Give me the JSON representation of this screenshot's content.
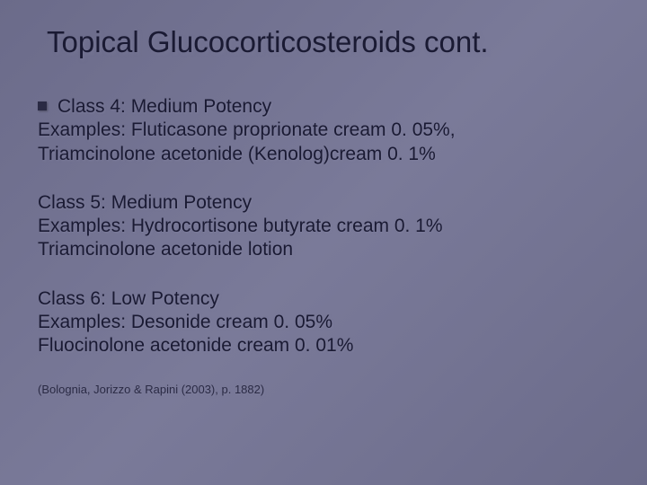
{
  "title": "Topical Glucocorticosteroids cont.",
  "sections": [
    {
      "heading": "Class 4: Medium Potency",
      "hasBullet": true,
      "lines": [
        "Examples: Fluticasone proprionate cream 0. 05%,",
        "Triamcinolone acetonide (Kenolog)cream 0. 1%"
      ]
    },
    {
      "heading": "Class 5: Medium Potency",
      "hasBullet": false,
      "lines": [
        "Examples: Hydrocortisone butyrate cream 0. 1%",
        "Triamcinolone acetonide lotion"
      ]
    },
    {
      "heading": "Class 6: Low Potency",
      "hasBullet": false,
      "lines": [
        "Examples: Desonide cream 0. 05%",
        "Fluocinolone acetonide cream 0. 01%"
      ]
    }
  ],
  "citation": "(Bolognia, Jorizzo & Rapini (2003), p. 1882)",
  "colors": {
    "background": "#73738f",
    "text": "#1a1a33",
    "bullet": "#2a2a44"
  }
}
